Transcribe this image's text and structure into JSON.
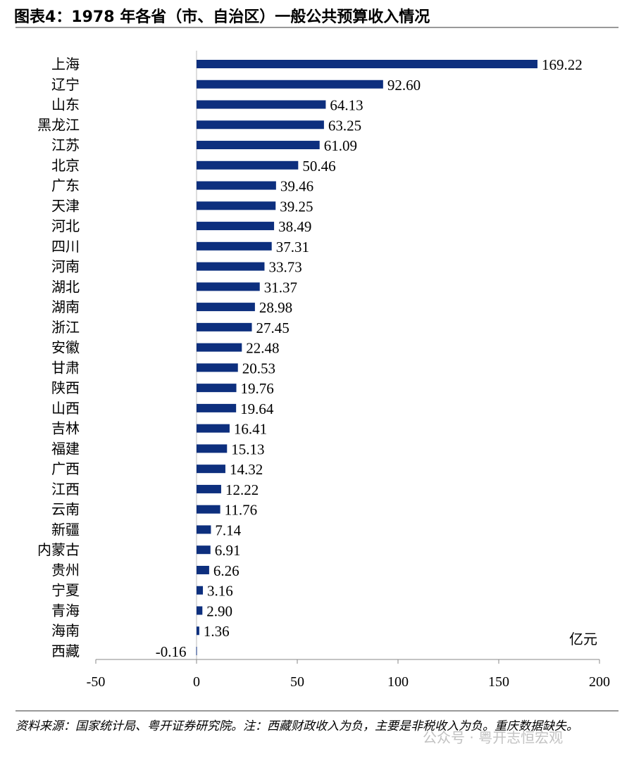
{
  "title": "图表4：1978 年各省（市、自治区）一般公共预算收入情况",
  "note": "资料来源：国家统计局、粤开证券研究院。注：西藏财政收入为负，主要是非税收入为负。重庆数据缺失。",
  "watermark": "公众号 · 粤开志恒宏观",
  "chart_data": {
    "type": "bar",
    "orientation": "horizontal",
    "categories": [
      "上海",
      "辽宁",
      "山东",
      "黑龙江",
      "江苏",
      "北京",
      "广东",
      "天津",
      "河北",
      "四川",
      "河南",
      "湖北",
      "湖南",
      "浙江",
      "安徽",
      "甘肃",
      "陕西",
      "山西",
      "吉林",
      "福建",
      "广西",
      "江西",
      "云南",
      "新疆",
      "内蒙古",
      "贵州",
      "宁夏",
      "青海",
      "海南",
      "西藏"
    ],
    "values": [
      169.22,
      92.6,
      64.13,
      63.25,
      61.09,
      50.46,
      39.46,
      39.25,
      38.49,
      37.31,
      33.73,
      31.37,
      28.98,
      27.45,
      22.48,
      20.53,
      19.76,
      19.64,
      16.41,
      15.13,
      14.32,
      12.22,
      11.76,
      7.14,
      6.91,
      6.26,
      3.16,
      2.9,
      1.36,
      -0.16
    ],
    "data_labels": [
      "169.22",
      "92.60",
      "64.13",
      "63.25",
      "61.09",
      "50.46",
      "39.46",
      "39.25",
      "38.49",
      "37.31",
      "33.73",
      "31.37",
      "28.98",
      "27.45",
      "22.48",
      "20.53",
      "19.76",
      "19.64",
      "16.41",
      "15.13",
      "14.32",
      "12.22",
      "11.76",
      "7.14",
      "6.91",
      "6.26",
      "3.16",
      "2.90",
      "1.36",
      "-0.16"
    ],
    "unit_label": "亿元",
    "xlim": [
      -50,
      200
    ],
    "xticks": [
      "-50",
      "0",
      "50",
      "100",
      "150",
      "200"
    ],
    "bar_color": "#0d2f7e",
    "grid": false
  }
}
